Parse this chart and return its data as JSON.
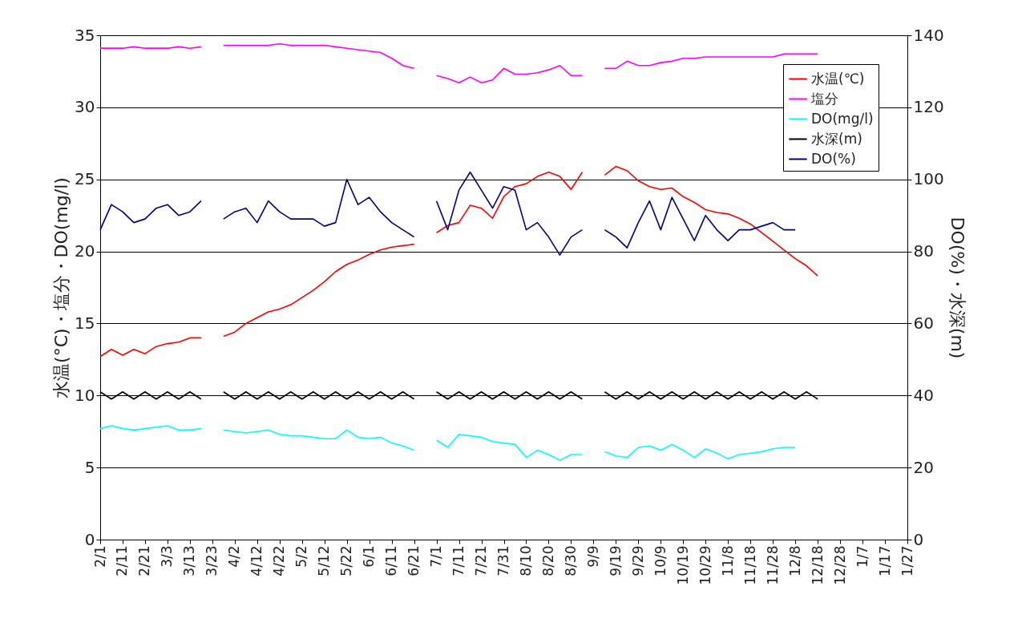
{
  "chart_data": {
    "type": "line",
    "ylabel": "水温(°C)・塩分・DO(mg/l)",
    "y2label": "DO(%)・水深(m)",
    "categories": [
      "2/1",
      null,
      "2/11",
      null,
      "2/21",
      null,
      "3/3",
      null,
      "3/13",
      null,
      "3/23",
      null,
      "4/2",
      null,
      "4/12",
      null,
      "4/22",
      null,
      "5/2",
      null,
      "5/12",
      null,
      "5/22",
      null,
      "6/1",
      null,
      "6/11",
      null,
      "6/21",
      null,
      "7/1",
      null,
      "7/11",
      null,
      "7/21",
      null,
      "7/31",
      null,
      "8/10",
      null,
      "8/20",
      null,
      "8/30",
      null,
      "9/9",
      null,
      "9/19",
      null,
      "9/29",
      null,
      "10/9",
      null,
      "10/19",
      null,
      "10/29",
      null,
      "11/8",
      null,
      "11/18",
      null,
      "11/28",
      null,
      "12/8",
      null,
      "12/18",
      null,
      "12/28",
      null,
      "1/7",
      null,
      "1/17",
      null,
      "1/27"
    ],
    "ylim": [
      0,
      35
    ],
    "yticks": [
      0,
      5,
      10,
      15,
      20,
      25,
      30,
      35
    ],
    "y2lim": [
      0,
      140
    ],
    "y2ticks": [
      0,
      20,
      40,
      60,
      80,
      100,
      120,
      140
    ],
    "grid": "y",
    "legend": "top right",
    "series": [
      {
        "name": "水温(℃)",
        "color": "#ff0000",
        "values": [
          12.7,
          13.2,
          12.8,
          13.2,
          12.9,
          13.4,
          13.6,
          13.7,
          14.0,
          14.0,
          null,
          14.1,
          14.4,
          15.0,
          15.4,
          15.8,
          16.0,
          16.3,
          16.8,
          17.3,
          17.9,
          18.6,
          19.1,
          19.4,
          19.8,
          20.1,
          20.3,
          20.4,
          20.5,
          null,
          21.3,
          21.8,
          22.0,
          23.2,
          23.0,
          22.3,
          23.8,
          24.5,
          24.7,
          25.2,
          25.5,
          25.2,
          24.3,
          25.5,
          null,
          25.3,
          25.9,
          25.6,
          24.9,
          24.5,
          24.3,
          24.4,
          23.8,
          23.4,
          22.9,
          22.7,
          22.6,
          22.3,
          21.9,
          21.3,
          20.7,
          20.1,
          19.5,
          19.0,
          18.3,
          null,
          null,
          null,
          null,
          null,
          null,
          null,
          null
        ]
      },
      {
        "name": "塩分",
        "color": "#ff00ff",
        "values": [
          34.1,
          34.1,
          34.1,
          34.2,
          34.1,
          34.1,
          34.1,
          34.2,
          34.1,
          34.2,
          null,
          34.3,
          34.3,
          34.3,
          34.3,
          34.3,
          34.4,
          34.3,
          34.3,
          34.3,
          34.3,
          34.2,
          34.1,
          34.0,
          33.9,
          33.8,
          33.4,
          32.9,
          32.7,
          null,
          32.2,
          32.0,
          31.7,
          32.1,
          31.7,
          31.9,
          32.7,
          32.3,
          32.3,
          32.4,
          32.6,
          32.9,
          32.2,
          32.2,
          null,
          32.7,
          32.7,
          33.2,
          32.9,
          32.9,
          33.1,
          33.2,
          33.4,
          33.4,
          33.5,
          33.5,
          33.5,
          33.5,
          33.5,
          33.5,
          33.5,
          33.7,
          33.7,
          33.7,
          33.7,
          null,
          null,
          null,
          null,
          null,
          null,
          null,
          null
        ]
      },
      {
        "name": "DO(mg/l)",
        "color": "#00ffff",
        "values": [
          7.7,
          7.9,
          7.7,
          7.6,
          7.7,
          7.8,
          7.9,
          7.6,
          7.6,
          7.7,
          null,
          7.6,
          7.5,
          7.4,
          7.5,
          7.6,
          7.3,
          7.2,
          7.2,
          7.1,
          7.0,
          7.0,
          7.6,
          7.1,
          7.0,
          7.1,
          6.7,
          6.5,
          6.2,
          null,
          6.9,
          6.4,
          7.3,
          7.2,
          7.1,
          6.8,
          6.7,
          6.6,
          5.7,
          6.2,
          5.9,
          5.5,
          5.9,
          5.9,
          null,
          6.1,
          5.8,
          5.7,
          6.4,
          6.5,
          6.2,
          6.6,
          6.2,
          5.7,
          6.3,
          6.0,
          5.6,
          5.9,
          6.0,
          6.1,
          6.3,
          6.4,
          6.4,
          null,
          null,
          null,
          null,
          null,
          null,
          null,
          null,
          null,
          null
        ]
      },
      {
        "name": "水深(m)",
        "color": "#000000",
        "axis": "y2",
        "values": [
          41,
          39,
          41,
          39,
          41,
          39,
          41,
          39,
          41,
          39,
          null,
          41,
          39,
          41,
          39,
          41,
          39,
          41,
          39,
          41,
          39,
          41,
          39,
          41,
          39,
          41,
          39,
          41,
          39,
          null,
          41,
          39,
          41,
          39,
          41,
          39,
          41,
          39,
          41,
          39,
          41,
          39,
          41,
          39,
          null,
          41,
          39,
          41,
          39,
          41,
          39,
          41,
          39,
          41,
          39,
          41,
          39,
          41,
          39,
          41,
          39,
          41,
          39,
          41,
          39,
          null,
          null,
          null,
          null,
          null,
          null,
          null,
          null
        ]
      },
      {
        "name": "DO(%)",
        "color": "#000080",
        "axis": "y2",
        "values": [
          86,
          93,
          91,
          88,
          89,
          92,
          93,
          90,
          91,
          94,
          null,
          89,
          91,
          92,
          88,
          94,
          91,
          89,
          89,
          89,
          87,
          88,
          100,
          93,
          95,
          91,
          88,
          86,
          84,
          null,
          94,
          86,
          97,
          102,
          97,
          92,
          98,
          97,
          86,
          88,
          84,
          79,
          84,
          86,
          null,
          86,
          84,
          81,
          88,
          94,
          86,
          95,
          89,
          83,
          90,
          86,
          83,
          86,
          86,
          87,
          88,
          86,
          86,
          null,
          null,
          null,
          null,
          null,
          null,
          null,
          null,
          null,
          null
        ]
      }
    ]
  }
}
